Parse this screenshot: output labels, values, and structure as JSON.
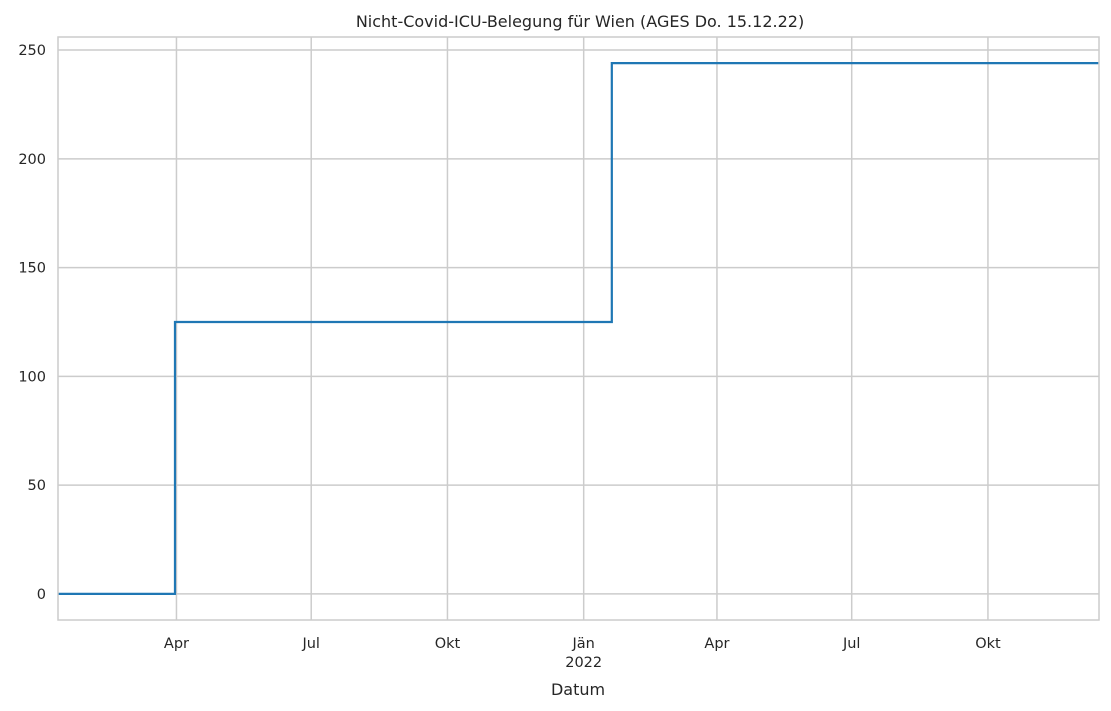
{
  "chart_data": {
    "type": "line",
    "title": "Nicht-Covid-ICU-Belegung für Wien (AGES Do. 15.12.22)",
    "xlabel": "Datum",
    "ylabel": "",
    "xlim": [
      "2021-01-11",
      "2022-12-15"
    ],
    "ylim": [
      -12,
      256
    ],
    "grid": true,
    "legend": "none",
    "colors": {
      "series": "#1f77b4",
      "grid": "#cccccc",
      "text": "#262626"
    },
    "y_ticks": [
      0,
      50,
      100,
      150,
      200,
      250
    ],
    "x_ticks": [
      {
        "date": "2021-04-01",
        "label": "Apr",
        "sublabel": ""
      },
      {
        "date": "2021-07-01",
        "label": "Jul",
        "sublabel": ""
      },
      {
        "date": "2021-10-01",
        "label": "Okt",
        "sublabel": ""
      },
      {
        "date": "2022-01-01",
        "label": "Jän",
        "sublabel": "2022"
      },
      {
        "date": "2022-04-01",
        "label": "Apr",
        "sublabel": ""
      },
      {
        "date": "2022-07-01",
        "label": "Jul",
        "sublabel": ""
      },
      {
        "date": "2022-10-01",
        "label": "Okt",
        "sublabel": ""
      }
    ],
    "series": [
      {
        "step": true,
        "x": [
          "2021-01-11",
          "2021-03-31",
          "2022-01-20",
          "2022-12-15"
        ],
        "values": [
          0,
          125,
          244,
          244
        ]
      }
    ]
  }
}
